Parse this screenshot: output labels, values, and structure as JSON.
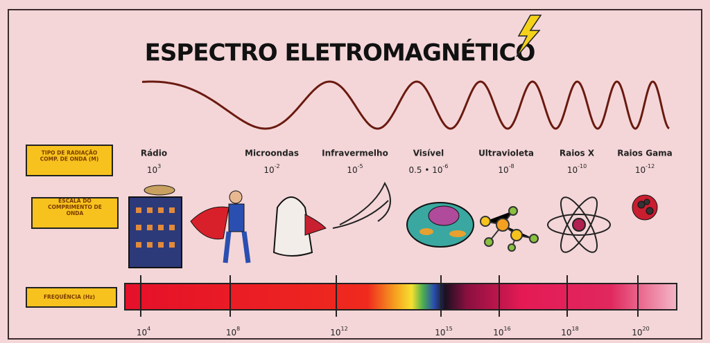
{
  "title": "ESPECTRO ELETROMAGNÉTICO",
  "row_labels": {
    "type": [
      "TIPO DE RADIAÇÃO",
      "COMP. DE ONDA (M)"
    ],
    "scale": [
      "ESCALA DO",
      "COMPRIMENTO DE",
      "ONDA"
    ],
    "frequency": [
      "FREQUÊNCIA (Hz)"
    ]
  },
  "radiations": [
    {
      "name": "Rádio",
      "wavelength": {
        "base": "10",
        "exp": "3"
      }
    },
    {
      "name": "Microondas",
      "wavelength": {
        "base": "10",
        "exp": "-2"
      }
    },
    {
      "name": "Infravermelho",
      "wavelength": {
        "base": "10",
        "exp": "-5"
      }
    },
    {
      "name": "Visível",
      "wavelength": {
        "base": "0.5 • 10",
        "exp": "-6"
      }
    },
    {
      "name": "Ultravioleta",
      "wavelength": {
        "base": "10",
        "exp": "-8"
      }
    },
    {
      "name": "Raios X",
      "wavelength": {
        "base": "10",
        "exp": "-10"
      }
    },
    {
      "name": "Raios Gama",
      "wavelength": {
        "base": "10",
        "exp": "-12"
      }
    }
  ],
  "frequencies": [
    {
      "base": "10",
      "exp": "4"
    },
    {
      "base": "10",
      "exp": "8"
    },
    {
      "base": "10",
      "exp": "12"
    },
    {
      "base": "10",
      "exp": "15"
    },
    {
      "base": "10",
      "exp": "16"
    },
    {
      "base": "10",
      "exp": "18"
    },
    {
      "base": "10",
      "exp": "20"
    }
  ]
}
